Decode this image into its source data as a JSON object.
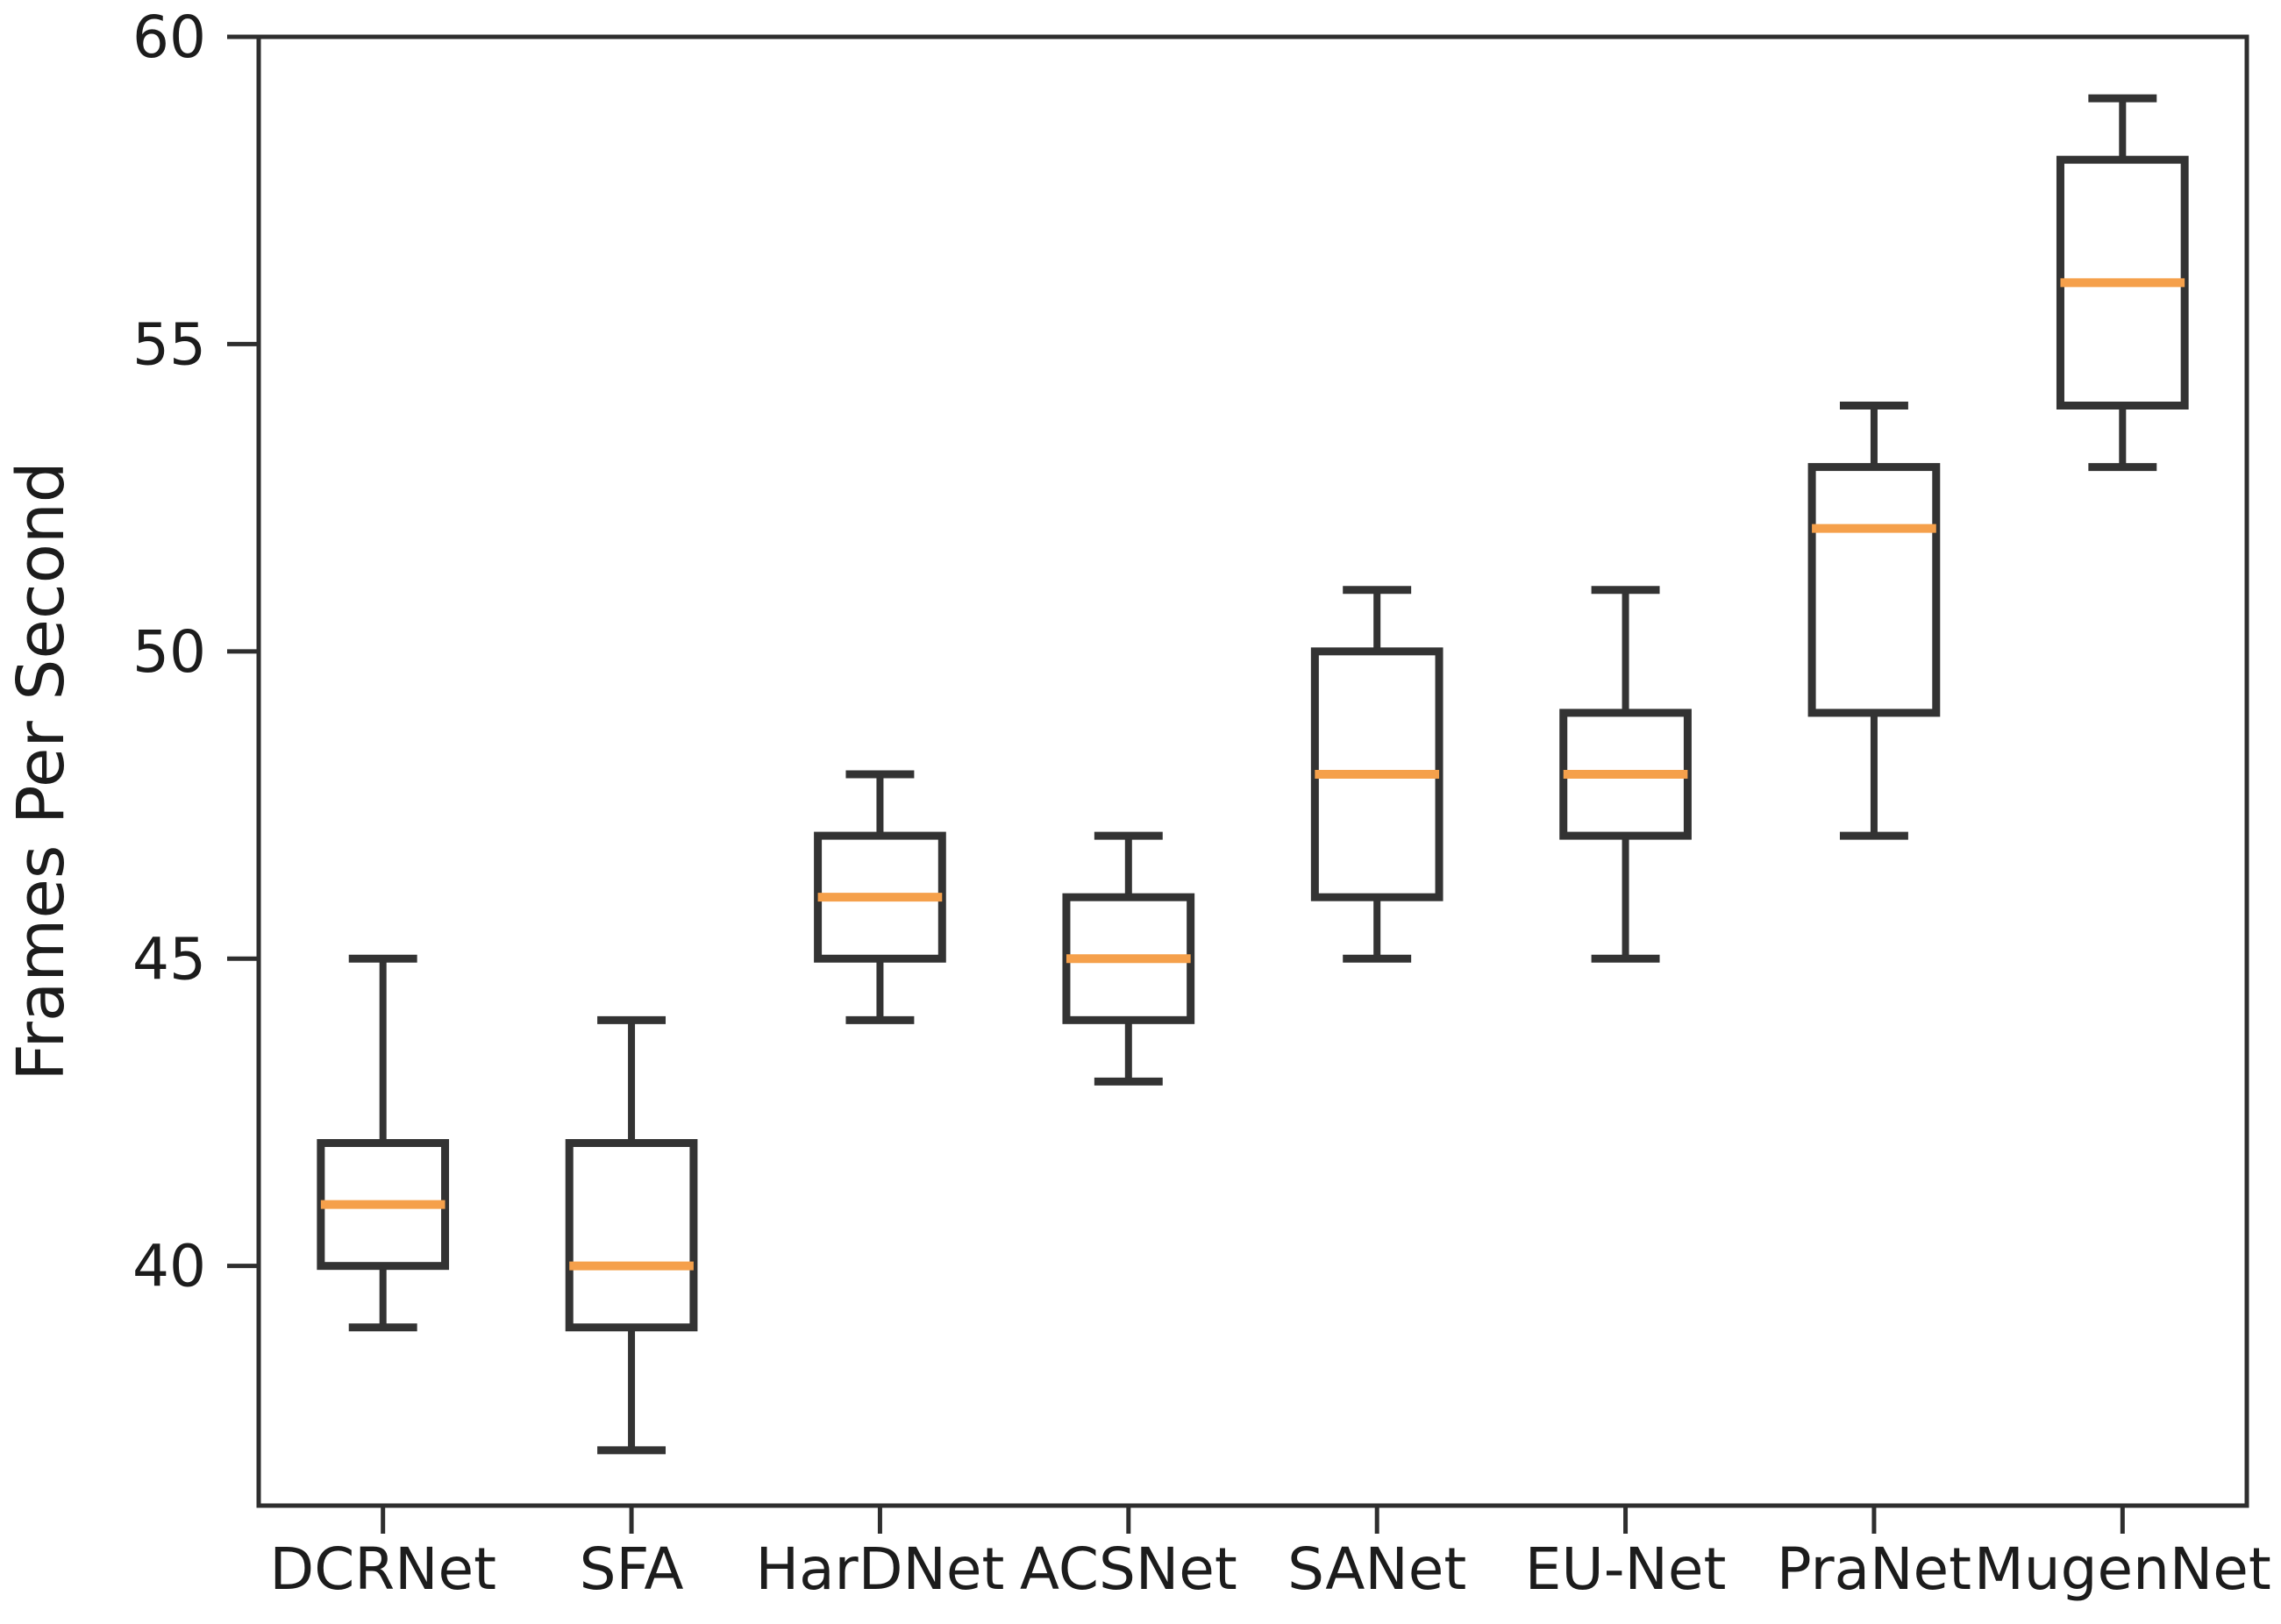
{
  "figure": {
    "background": "#ffffff",
    "text_color": "#1c1c1c",
    "spine_color": "#2e2e2e",
    "box_edge_color": "#333333",
    "whisker_color": "#333333",
    "median_color": "#f5a04b",
    "ylabel": "Frames Per Second"
  },
  "chart_data": {
    "type": "box",
    "title": "",
    "xlabel": "",
    "ylabel": "Frames Per Second",
    "categories": [
      "DCRNet",
      "SFA",
      "HarDNet",
      "ACSNet",
      "SANet",
      "EU-Net",
      "PraNet",
      "MugenNet"
    ],
    "series": [
      {
        "name": "DCRNet",
        "whislo": 39,
        "q1": 40,
        "med": 41,
        "q3": 42,
        "whishi": 45
      },
      {
        "name": "SFA",
        "whislo": 37,
        "q1": 39,
        "med": 40,
        "q3": 42,
        "whishi": 44
      },
      {
        "name": "HarDNet",
        "whislo": 44,
        "q1": 45,
        "med": 46,
        "q3": 47,
        "whishi": 48
      },
      {
        "name": "ACSNet",
        "whislo": 43,
        "q1": 44,
        "med": 45,
        "q3": 46,
        "whishi": 47
      },
      {
        "name": "SANet",
        "whislo": 45,
        "q1": 46,
        "med": 48,
        "q3": 50,
        "whishi": 51
      },
      {
        "name": "EU-Net",
        "whislo": 45,
        "q1": 47,
        "med": 48,
        "q3": 49,
        "whishi": 51
      },
      {
        "name": "PraNet",
        "whislo": 47,
        "q1": 49,
        "med": 52,
        "q3": 53,
        "whishi": 54
      },
      {
        "name": "MugenNet",
        "whislo": 53,
        "q1": 54,
        "med": 56,
        "q3": 58,
        "whishi": 59
      }
    ],
    "yticks": [
      40,
      45,
      50,
      55,
      60
    ],
    "ylim": [
      36.1,
      60.0
    ],
    "grid": false,
    "legend": null,
    "fliers": []
  }
}
